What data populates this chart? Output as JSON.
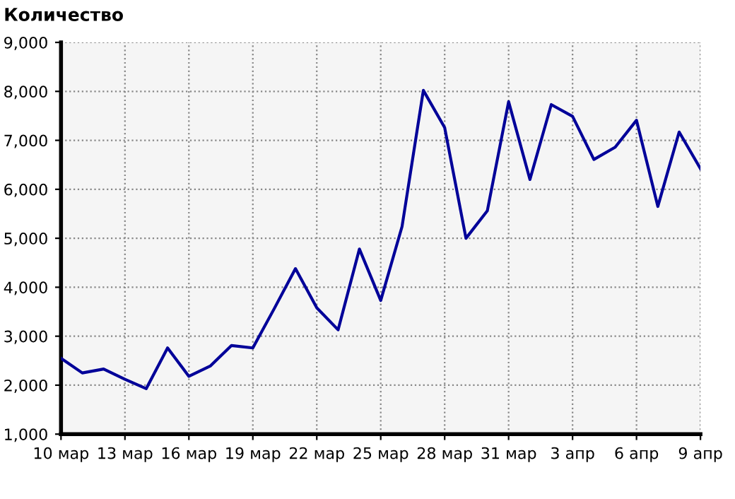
{
  "chart_data": {
    "type": "line",
    "ylabel": "Количество",
    "categories": [
      "10 мар",
      null,
      null,
      "13 мар",
      null,
      null,
      "16 мар",
      null,
      null,
      "19 мар",
      null,
      null,
      "22 мар",
      null,
      null,
      "25 мар",
      null,
      null,
      "28 мар",
      null,
      null,
      "31 мар",
      null,
      null,
      "3 апр",
      null,
      null,
      "6 апр",
      null,
      null,
      "9 апр"
    ],
    "series": [
      {
        "color": "#000099",
        "values": [
          2550,
          2250,
          2330,
          2120,
          1930,
          2760,
          2180,
          2390,
          2810,
          2760,
          3560,
          4380,
          3580,
          3130,
          4780,
          3730,
          5240,
          8020,
          7260,
          5000,
          5560,
          7790,
          6200,
          7730,
          7490,
          6610,
          6860,
          7410,
          5650,
          7170,
          6420
        ]
      }
    ],
    "ylim": [
      1000,
      9000
    ],
    "yticks": [
      {
        "value": 1000,
        "label": "1,000"
      },
      {
        "value": 2000,
        "label": "2,000"
      },
      {
        "value": 3000,
        "label": "3,000"
      },
      {
        "value": 4000,
        "label": "4,000"
      },
      {
        "value": 5000,
        "label": "5,000"
      },
      {
        "value": 6000,
        "label": "6,000"
      },
      {
        "value": 7000,
        "label": "7,000"
      },
      {
        "value": 8000,
        "label": "8,000"
      },
      {
        "value": 9000,
        "label": "9,000"
      }
    ],
    "grid": true,
    "line_style": "solid",
    "marker": "none"
  }
}
